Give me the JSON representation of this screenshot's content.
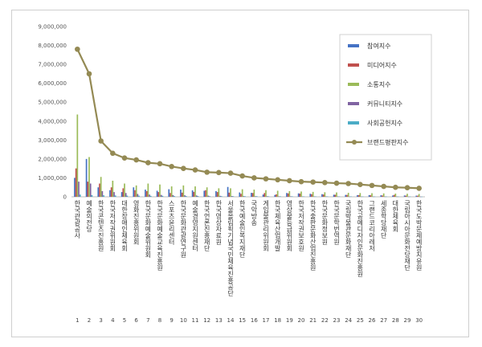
{
  "chart_data": {
    "type": "bar",
    "title": "",
    "xlabel": "",
    "ylabel": "",
    "ylim": [
      0,
      9000000
    ],
    "yticks": [
      "0",
      "1,000,000",
      "2,000,000",
      "3,000,000",
      "4,000,000",
      "5,000,000",
      "6,000,000",
      "7,000,000",
      "8,000,000",
      "9,000,000"
    ],
    "grid": false,
    "legend_position": "right",
    "indices": [
      "1",
      "2",
      "3",
      "4",
      "5",
      "6",
      "7",
      "8",
      "9",
      "10",
      "11",
      "12",
      "13",
      "14",
      "15",
      "16",
      "17",
      "18",
      "19",
      "20",
      "21",
      "22",
      "23",
      "24",
      "25",
      "26",
      "27",
      "28",
      "29",
      "30"
    ],
    "categories": [
      "한국관광공사",
      "예술의전당",
      "한국콘텐츠진흥원",
      "한국저작권위원회",
      "대한장애인체육회",
      "영화진흥위원회",
      "한국문화예술위원회",
      "한국문화예술교육진흥원",
      "스포츠윤리센터",
      "한국문화관광연구원",
      "예술경영지원센터",
      "한국언론진흥재단",
      "한국영상자료원",
      "서울올림픽기념국민체육진흥공단",
      "한국예술인복지재단",
      "국악방송",
      "게임물관리위원회",
      "한국체육산업개발",
      "영상물등급위원회",
      "한국저작권보호원",
      "한국출판문화산업진흥원",
      "한국문화정보원",
      "한국문학번역원",
      "국립박물관문화재단",
      "한국공예디자인문화진흥원",
      "그랜드코리아레저",
      "세종학당재단",
      "대한체육회",
      "국립아시아문화전당재단",
      "한국도박문제예방치유원"
    ],
    "series": [
      {
        "name": "참여지수",
        "kind": "bar",
        "color": "#4472c4",
        "values": [
          1000000,
          2000000,
          500000,
          350000,
          250000,
          500000,
          380000,
          320000,
          400000,
          380000,
          340000,
          320000,
          300000,
          520000,
          230000,
          210000,
          120000,
          100000,
          200000,
          180000,
          160000,
          140000,
          110000,
          100000,
          90000,
          90000,
          80000,
          70000,
          70000,
          60000
        ]
      },
      {
        "name": "미디어지수",
        "kind": "bar",
        "color": "#c0504d",
        "values": [
          1500000,
          800000,
          700000,
          500000,
          450000,
          350000,
          300000,
          250000,
          200000,
          220000,
          260000,
          350000,
          250000,
          220000,
          160000,
          200000,
          200000,
          130000,
          180000,
          170000,
          140000,
          120000,
          110000,
          100000,
          90000,
          80000,
          70000,
          100000,
          60000,
          60000
        ]
      },
      {
        "name": "소통지수",
        "kind": "bar",
        "color": "#9bbb59",
        "values": [
          4350000,
          2100000,
          1050000,
          850000,
          700000,
          600000,
          700000,
          650000,
          550000,
          600000,
          550000,
          500000,
          450000,
          450000,
          400000,
          380000,
          350000,
          320000,
          300000,
          280000,
          260000,
          240000,
          230000,
          210000,
          200000,
          190000,
          180000,
          170000,
          160000,
          150000
        ]
      },
      {
        "name": "커뮤니티지수",
        "kind": "bar",
        "color": "#8064a2",
        "values": [
          800000,
          700000,
          300000,
          250000,
          200000,
          150000,
          120000,
          100000,
          90000,
          80000,
          70000,
          60000,
          50000,
          40000,
          35000,
          30000,
          30000,
          25000,
          25000,
          20000,
          20000,
          20000,
          20000,
          15000,
          15000,
          15000,
          15000,
          15000,
          10000,
          10000
        ]
      },
      {
        "name": "사회공헌지수",
        "kind": "bar",
        "color": "#4bacc6",
        "values": [
          120000,
          90000,
          80000,
          70000,
          60000,
          60000,
          50000,
          50000,
          40000,
          40000,
          40000,
          35000,
          35000,
          30000,
          30000,
          30000,
          25000,
          25000,
          25000,
          20000,
          20000,
          20000,
          20000,
          20000,
          15000,
          15000,
          15000,
          15000,
          15000,
          10000
        ]
      },
      {
        "name": "브랜드평판지수",
        "kind": "line",
        "color": "#948a54",
        "values": [
          7800000,
          6500000,
          2950000,
          2300000,
          2050000,
          1950000,
          1800000,
          1750000,
          1600000,
          1500000,
          1420000,
          1300000,
          1280000,
          1250000,
          1100000,
          1000000,
          950000,
          900000,
          850000,
          800000,
          780000,
          750000,
          720000,
          700000,
          650000,
          600000,
          550000,
          500000,
          480000,
          450000
        ]
      }
    ]
  }
}
